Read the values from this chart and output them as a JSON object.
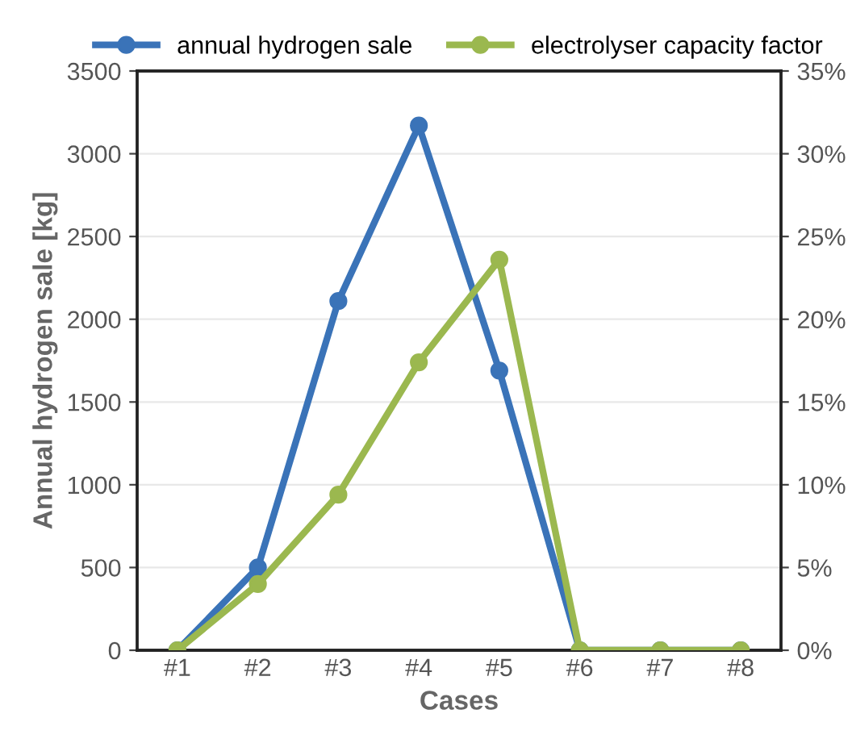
{
  "chart_data": {
    "type": "line",
    "xlabel": "Cases",
    "ylabel": "Annual hydrogen sale [kg]",
    "categories": [
      "#1",
      "#2",
      "#3",
      "#4",
      "#5",
      "#6",
      "#7",
      "#8"
    ],
    "series": [
      {
        "name": "annual hydrogen sale",
        "color": "#3a73b8",
        "values": [
          0,
          500,
          2110,
          3170,
          1690,
          0,
          0,
          0
        ]
      },
      {
        "name": "electrolyser capacity factor",
        "color": "#9bb84f",
        "axis": "y2",
        "values": [
          0,
          4.0,
          9.4,
          17.4,
          23.6,
          0,
          0,
          0
        ]
      }
    ],
    "ylim": [
      0,
      3500
    ],
    "yticks": [
      0,
      500,
      1000,
      1500,
      2000,
      2500,
      3000,
      3500
    ],
    "y2lim": [
      0,
      35
    ],
    "y2ticks": [
      {
        "value": 0,
        "label": "0%"
      },
      {
        "value": 5,
        "label": "5%"
      },
      {
        "value": 10,
        "label": "10%"
      },
      {
        "value": 15,
        "label": "15%"
      },
      {
        "value": 20,
        "label": "20%"
      },
      {
        "value": 25,
        "label": "25%"
      },
      {
        "value": 30,
        "label": "30%"
      },
      {
        "value": 35,
        "label": "35%"
      }
    ],
    "grid": "y",
    "legend": "top",
    "marker": "circle",
    "line_style": "solid"
  }
}
